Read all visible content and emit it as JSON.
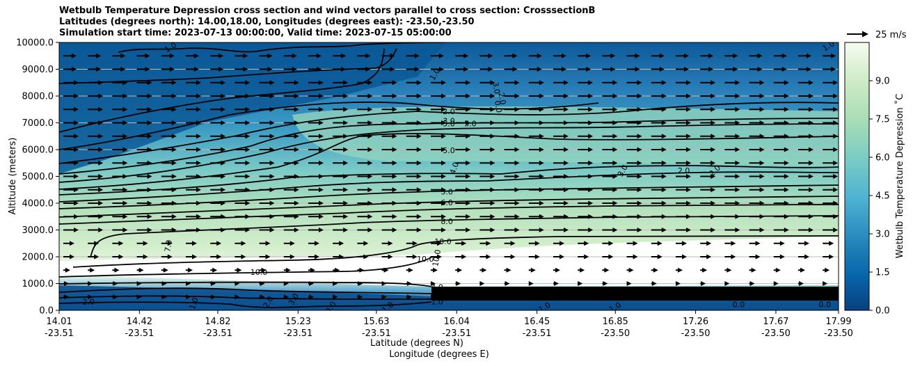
{
  "chart_data": {
    "type": "contour",
    "title_lines": [
      "Wetbulb Temperature Depression cross section and wind vectors parallel to cross section: CrosssectionB",
      "Latitudes (degrees north): 14.00,18.00, Longitudes (degrees east): -23.50,-23.50",
      "Simulation start time: 2023-07-13 00:00:00, Valid time: 2023-07-15 05:00:00"
    ],
    "xlabel_1": "Latitude (degrees N)",
    "xlabel_2": "Longitude (degrees E)",
    "ylabel": "Altitude (meters)",
    "ylim": [
      0,
      10000
    ],
    "y_ticks": [
      {
        "value": 0,
        "label": "0.0"
      },
      {
        "value": 1000,
        "label": "1000.0"
      },
      {
        "value": 2000,
        "label": "2000.0"
      },
      {
        "value": 3000,
        "label": "3000.0"
      },
      {
        "value": 4000,
        "label": "4000.0"
      },
      {
        "value": 5000,
        "label": "5000.0"
      },
      {
        "value": 6000,
        "label": "6000.0"
      },
      {
        "value": 7000,
        "label": "7000.0"
      },
      {
        "value": 8000,
        "label": "8000.0"
      },
      {
        "value": 9000,
        "label": "9000.0"
      },
      {
        "value": 10000,
        "label": "10000.0"
      }
    ],
    "xlim": [
      14.01,
      17.99
    ],
    "x_ticks": [
      {
        "value": 14.01,
        "lat": "14.01",
        "lon": "-23.51"
      },
      {
        "value": 14.42,
        "lat": "14.42",
        "lon": "-23.51"
      },
      {
        "value": 14.82,
        "lat": "14.82",
        "lon": "-23.51"
      },
      {
        "value": 15.23,
        "lat": "15.23",
        "lon": "-23.51"
      },
      {
        "value": 15.63,
        "lat": "15.63",
        "lon": "-23.51"
      },
      {
        "value": 16.04,
        "lat": "16.04",
        "lon": "-23.51"
      },
      {
        "value": 16.45,
        "lat": "16.45",
        "lon": "-23.51"
      },
      {
        "value": 16.85,
        "lat": "16.85",
        "lon": "-23.50"
      },
      {
        "value": 17.26,
        "lat": "17.26",
        "lon": "-23.50"
      },
      {
        "value": 17.67,
        "lat": "17.67",
        "lon": "-23.50"
      },
      {
        "value": 17.99,
        "lat": "17.99",
        "lon": "-23.50"
      }
    ],
    "grid": "horizontal",
    "colorbar": {
      "label": "Wetbulb Temperature Depression ˚C",
      "range": [
        0,
        10.5
      ],
      "ticks": [
        "0.0",
        "1.5",
        "3.0",
        "4.5",
        "6.0",
        "7.5",
        "9.0"
      ],
      "colormap": "GnBu_r"
    },
    "quiver_key": "25 m/s",
    "contour_labels": [
      {
        "x": 14.58,
        "y": 9800,
        "text": "1.0",
        "rot": -30
      },
      {
        "x": 15.93,
        "y": 8800,
        "text": "1.0",
        "rot": -60
      },
      {
        "x": 16.24,
        "y": 8300,
        "text": "3.0",
        "rot": 80
      },
      {
        "x": 16.27,
        "y": 7900,
        "text": "2.0",
        "rot": 80
      },
      {
        "x": 16.25,
        "y": 7600,
        "text": "0.0",
        "rot": 80
      },
      {
        "x": 16.0,
        "y": 7400,
        "text": "2.0",
        "rot": 0
      },
      {
        "x": 16.0,
        "y": 7050,
        "text": "3.0",
        "rot": 0
      },
      {
        "x": 16.0,
        "y": 6950,
        "text": "5.0",
        "rot": 0
      },
      {
        "x": 16.11,
        "y": 6950,
        "text": "5.0",
        "rot": 0
      },
      {
        "x": 16.0,
        "y": 5950,
        "text": "5.0",
        "rot": 0
      },
      {
        "x": 16.03,
        "y": 5300,
        "text": "4.0",
        "rot": -70
      },
      {
        "x": 16.89,
        "y": 5200,
        "text": "3.0",
        "rot": -60
      },
      {
        "x": 17.2,
        "y": 5200,
        "text": "2.0",
        "rot": 0
      },
      {
        "x": 17.36,
        "y": 5200,
        "text": "2.0",
        "rot": -45
      },
      {
        "x": 15.99,
        "y": 4400,
        "text": "5.0",
        "rot": 0
      },
      {
        "x": 15.99,
        "y": 4000,
        "text": "6.0",
        "rot": 0
      },
      {
        "x": 15.99,
        "y": 3300,
        "text": "8.0",
        "rot": 0
      },
      {
        "x": 15.97,
        "y": 2550,
        "text": "10.0",
        "rot": 0
      },
      {
        "x": 15.88,
        "y": 1900,
        "text": "10.0",
        "rot": 0
      },
      {
        "x": 15.94,
        "y": 1950,
        "text": "10.0",
        "rot": -80
      },
      {
        "x": 14.57,
        "y": 2400,
        "text": "7.0",
        "rot": -80
      },
      {
        "x": 15.03,
        "y": 1400,
        "text": "10.0",
        "rot": 0
      },
      {
        "x": 14.16,
        "y": 300,
        "text": "2.0",
        "rot": 0
      },
      {
        "x": 14.7,
        "y": 250,
        "text": "1.0",
        "rot": -70
      },
      {
        "x": 15.08,
        "y": 300,
        "text": "2.0",
        "rot": -60
      },
      {
        "x": 15.21,
        "y": 400,
        "text": "3.0",
        "rot": -60
      },
      {
        "x": 15.4,
        "y": 100,
        "text": "3.0",
        "rot": -60
      },
      {
        "x": 15.69,
        "y": 100,
        "text": "1.0",
        "rot": -40
      },
      {
        "x": 15.94,
        "y": 850,
        "text": "4.0",
        "rot": 0
      },
      {
        "x": 15.94,
        "y": 600,
        "text": "8.0",
        "rot": 0
      },
      {
        "x": 15.94,
        "y": 300,
        "text": "1.0",
        "rot": 0
      },
      {
        "x": 16.49,
        "y": 100,
        "text": "1.0",
        "rot": -30
      },
      {
        "x": 16.85,
        "y": 100,
        "text": "1.0",
        "rot": -30
      },
      {
        "x": 17.48,
        "y": 200,
        "text": "0.0",
        "rot": 0
      },
      {
        "x": 17.92,
        "y": 200,
        "text": "0.0",
        "rot": 0
      },
      {
        "x": 17.94,
        "y": 9850,
        "text": "1.0",
        "rot": -30
      }
    ]
  }
}
